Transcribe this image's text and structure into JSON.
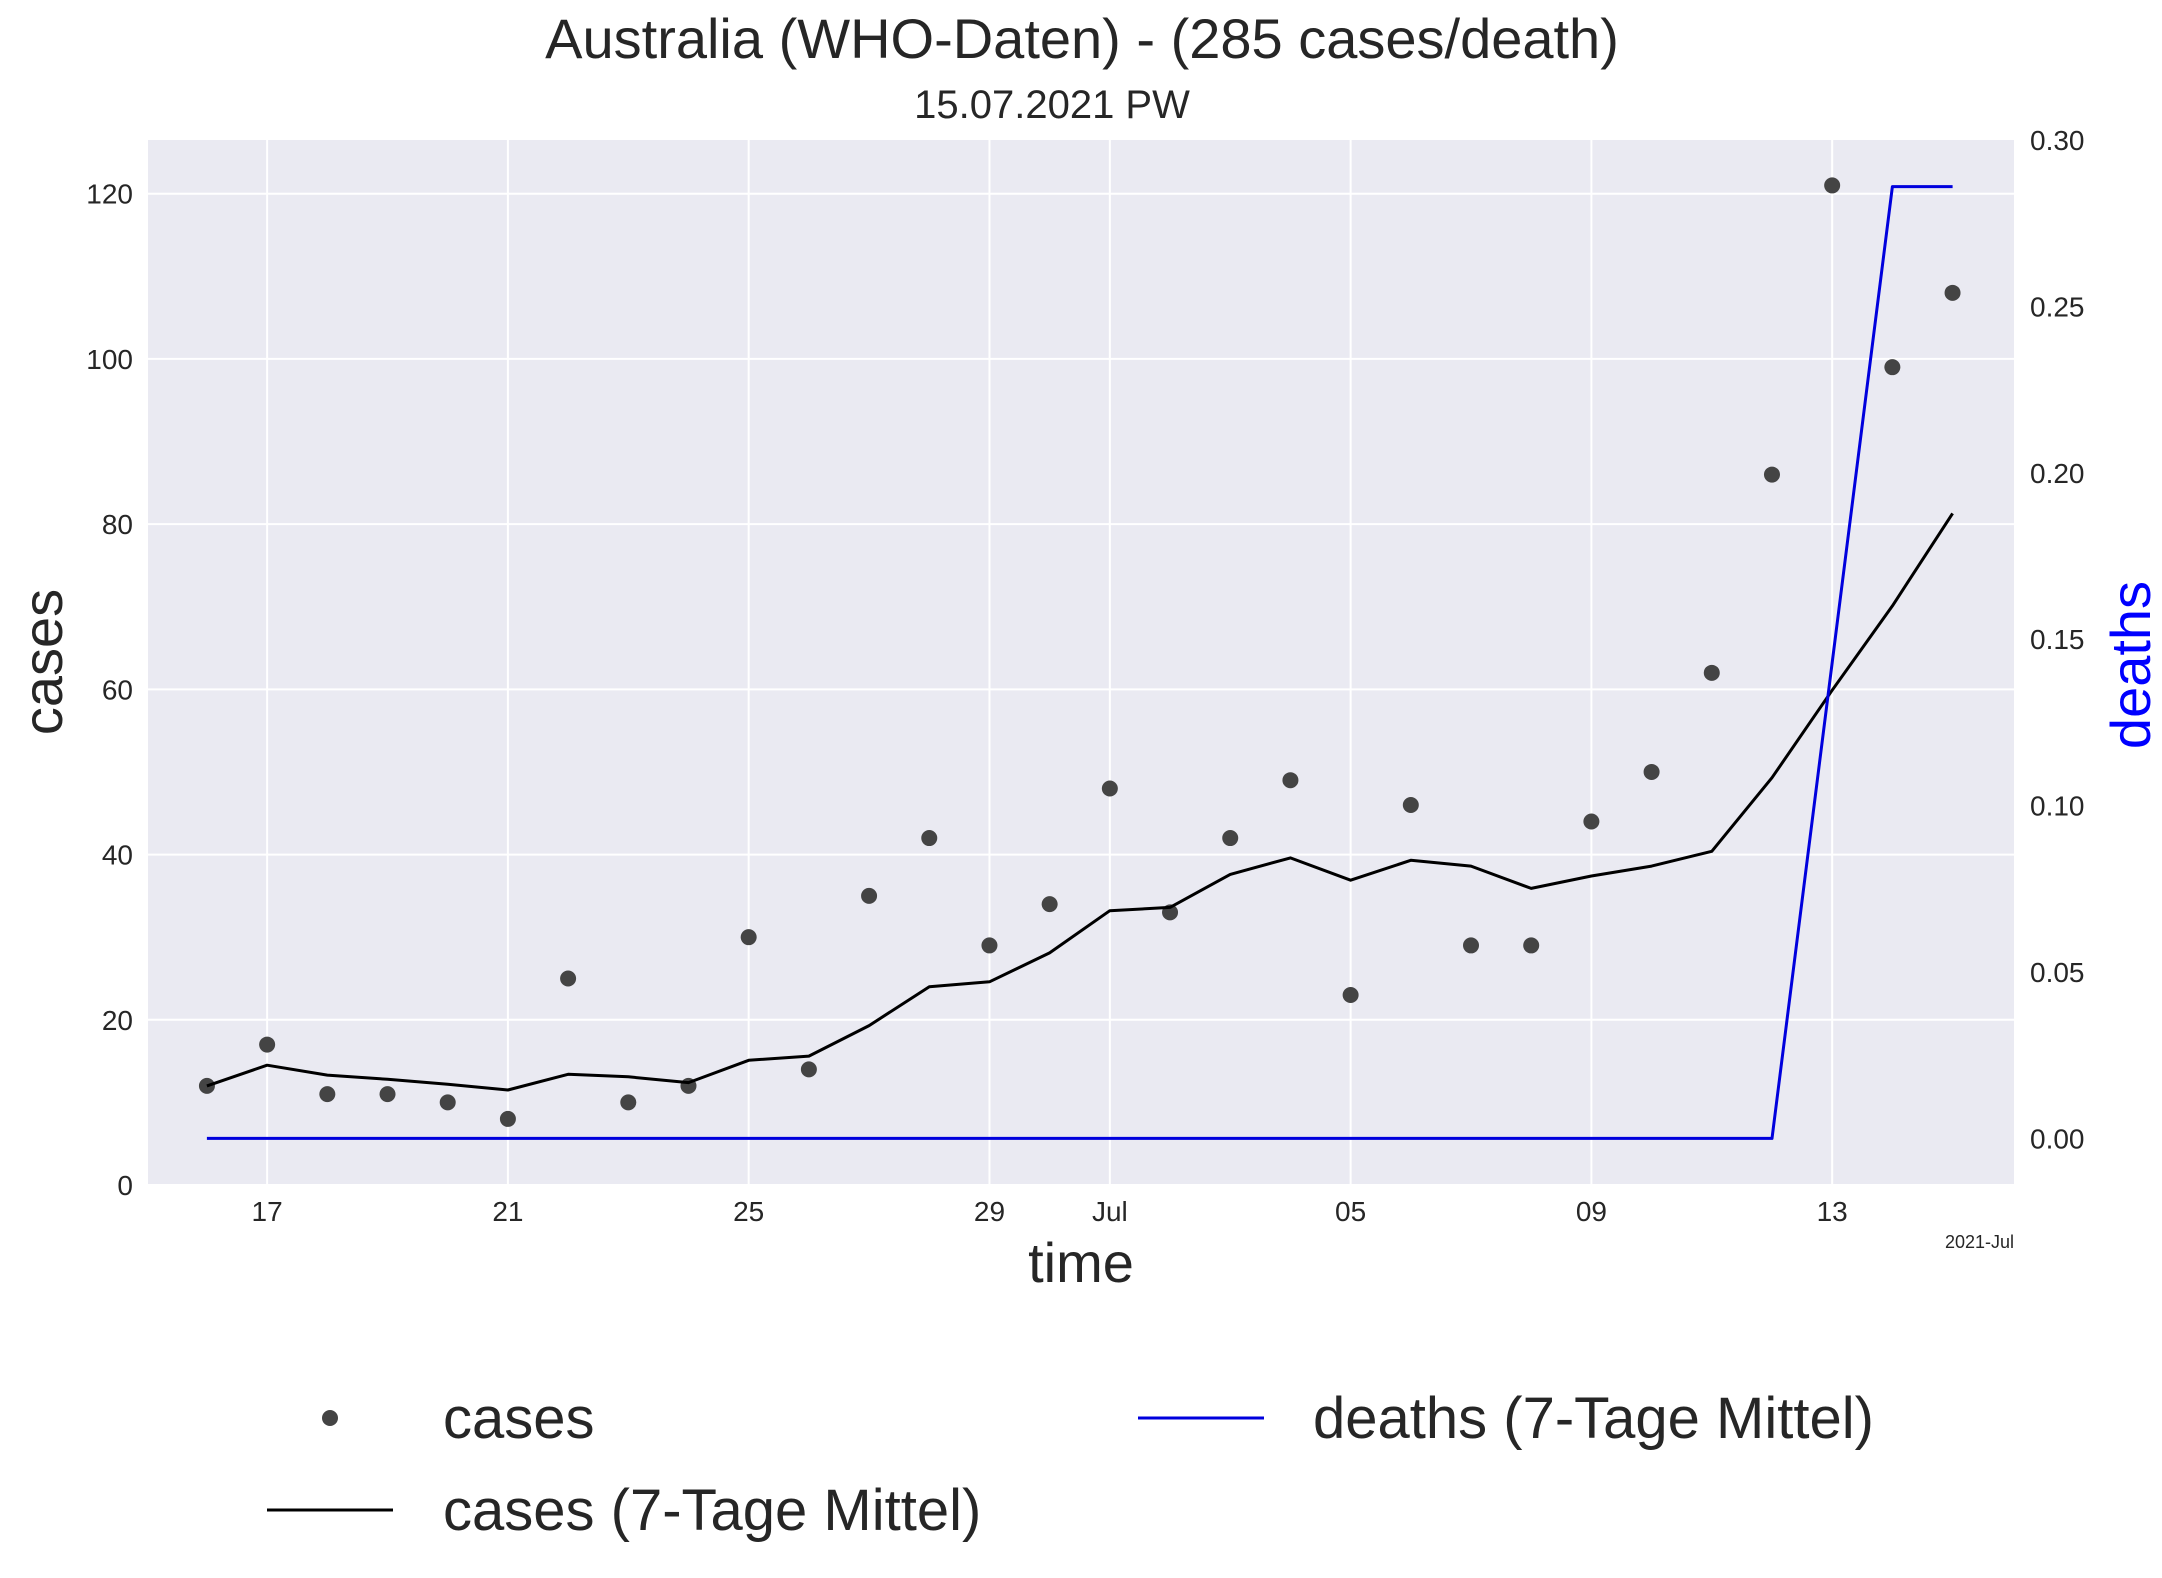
{
  "chart_data": {
    "type": "line",
    "title": "Australia (WHO-Daten) - (285 cases/death)",
    "subtitle": "15.07.2021 PW",
    "xlabel": "time",
    "ylabel": "cases",
    "y2label": "deaths",
    "x_offset_label": "2021-Jul",
    "x": [
      "2021-06-16",
      "2021-06-17",
      "2021-06-18",
      "2021-06-19",
      "2021-06-20",
      "2021-06-21",
      "2021-06-22",
      "2021-06-23",
      "2021-06-24",
      "2021-06-25",
      "2021-06-26",
      "2021-06-27",
      "2021-06-28",
      "2021-06-29",
      "2021-06-30",
      "2021-07-01",
      "2021-07-02",
      "2021-07-03",
      "2021-07-04",
      "2021-07-05",
      "2021-07-06",
      "2021-07-07",
      "2021-07-08",
      "2021-07-09",
      "2021-07-10",
      "2021-07-11",
      "2021-07-12",
      "2021-07-13",
      "2021-07-14",
      "2021-07-15"
    ],
    "xlim": [
      "2021-06-15T00:30",
      "2021-07-16T00:30"
    ],
    "x_ticks": [
      {
        "date": "2021-06-17",
        "label": "17"
      },
      {
        "date": "2021-06-21",
        "label": "21"
      },
      {
        "date": "2021-06-25",
        "label": "25"
      },
      {
        "date": "2021-06-29",
        "label": "29"
      },
      {
        "date": "2021-07-01",
        "label": "Jul"
      },
      {
        "date": "2021-07-05",
        "label": "05"
      },
      {
        "date": "2021-07-09",
        "label": "09"
      },
      {
        "date": "2021-07-13",
        "label": "13"
      }
    ],
    "ylim": [
      0,
      126.5
    ],
    "y_ticks": [
      "0",
      "20",
      "40",
      "60",
      "80",
      "100",
      "120"
    ],
    "y2lim": [
      -0.014,
      0.3
    ],
    "y2_ticks": [
      "0.00",
      "0.05",
      "0.10",
      "0.15",
      "0.20",
      "0.25",
      "0.30"
    ],
    "grid": true,
    "legend_position": "bottom",
    "series": [
      {
        "name": "cases",
        "style": "points",
        "axis": "left",
        "color": "#444444",
        "values": [
          12,
          17,
          11,
          11,
          10,
          8,
          25,
          10,
          12,
          30,
          14,
          35,
          42,
          29,
          34,
          48,
          33,
          42,
          49,
          23,
          46,
          29,
          29,
          44,
          50,
          62,
          86,
          121,
          99,
          108
        ]
      },
      {
        "name": "cases (7-Tage Mittel)",
        "style": "line",
        "axis": "left",
        "color": "#000000",
        "values": [
          12,
          14.5,
          13.3,
          12.8,
          12.2,
          11.5,
          13.4,
          13.1,
          12.4,
          15.1,
          15.6,
          19.3,
          24,
          24.6,
          28.1,
          33.2,
          33.6,
          37.6,
          39.6,
          36.9,
          39.3,
          38.6,
          35.9,
          37.4,
          38.6,
          40.4,
          49.3,
          59.9,
          70.1,
          81.3
        ]
      },
      {
        "name": "deaths (7-Tage Mittel)",
        "style": "line",
        "axis": "right",
        "color": "#0000dd",
        "values": [
          0,
          0,
          0,
          0,
          0,
          0,
          0,
          0,
          0,
          0,
          0,
          0,
          0,
          0,
          0,
          0,
          0,
          0,
          0,
          0,
          0,
          0,
          0,
          0,
          0,
          0,
          0,
          0.143,
          0.286,
          0.286
        ]
      }
    ]
  }
}
